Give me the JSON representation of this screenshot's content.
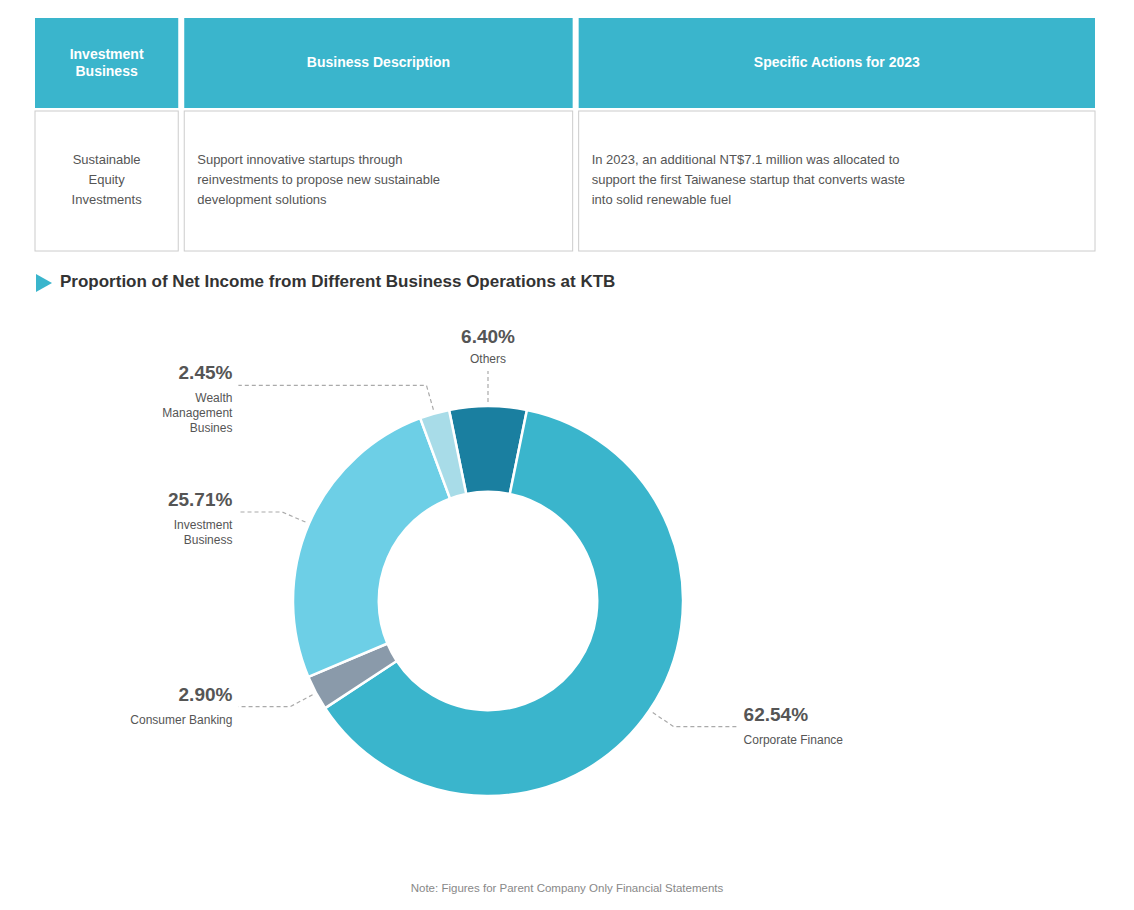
{
  "chart_data": [
    {
      "type": "table",
      "color": "#3ab5cc",
      "columns": [
        "Investment\nBusiness",
        "Business Description",
        "Specific Actions for 2023"
      ],
      "rows": [
        [
          "Sustainable\nEquity\nInvestments",
          "Support innovative startups through\nreinvestments to propose new sustainable\ndevelopment solutions",
          "In 2023, an additional NT$7.1 million was allocated to\nsupport the first Taiwanese startup that converts waste\ninto solid renewable fuel"
        ]
      ]
    },
    {
      "type": "pie",
      "title": "Proportion of Net Income from Different Business Operations at KTB",
      "categories": [
        "Others",
        "Corporate Finance",
        "Consumer Banking",
        "Investment\nBusiness",
        "Wealth\nManagement\nBusines"
      ],
      "values": [
        6.4,
        62.54,
        2.9,
        25.71,
        2.45
      ],
      "value_labels": [
        "6.40%",
        "62.54%",
        "2.90%",
        "25.71%",
        "2.45%"
      ],
      "colors": [
        "#1a7fa0",
        "#3ab5cc",
        "#8a9aaa",
        "#6dcfe6",
        "#a8dce8"
      ],
      "data_labels": true,
      "annotations": [
        "Note: Figures for Parent Company Only Financial Statements"
      ]
    }
  ]
}
